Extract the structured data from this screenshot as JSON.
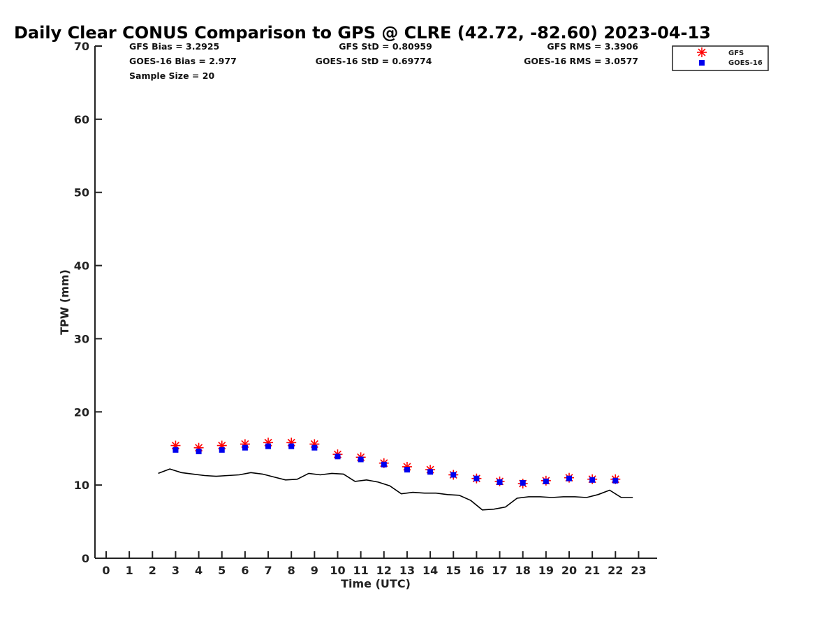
{
  "chart_data": {
    "type": "scatter",
    "title": "Daily Clear CONUS Comparison to GPS @ CLRE (42.72, -82.60) 2023-04-13",
    "xlabel": "Time (UTC)",
    "ylabel": "TPW (mm)",
    "xlim": [
      -0.5,
      23.7
    ],
    "ylim": [
      0,
      70
    ],
    "x_ticks": [
      0,
      1,
      2,
      3,
      4,
      5,
      6,
      7,
      8,
      9,
      10,
      11,
      12,
      13,
      14,
      15,
      16,
      17,
      18,
      19,
      20,
      21,
      22,
      23
    ],
    "y_ticks": [
      0,
      10,
      20,
      30,
      40,
      50,
      60,
      70
    ],
    "stats": {
      "gfs_bias": "GFS Bias = 3.2925",
      "goes_bias": "GOES-16 Bias = 2.977",
      "sample_size": "Sample Size = 20",
      "gfs_std": "GFS StD = 0.80959",
      "goes_std": "GOES-16 StD = 0.69774",
      "gfs_rms": "GFS RMS = 3.3906",
      "goes_rms": "GOES-16 RMS = 3.0577"
    },
    "legend": {
      "position": "top-right",
      "entries": [
        "GFS",
        "GOES-16"
      ]
    },
    "series": [
      {
        "name": "GFS",
        "color": "#ff0000",
        "marker": "asterisk",
        "x": [
          3,
          4,
          5,
          6,
          7,
          8,
          9,
          10,
          11,
          12,
          13,
          14,
          15,
          16,
          17,
          18,
          19,
          20,
          21,
          22
        ],
        "y": [
          15.4,
          15.1,
          15.4,
          15.6,
          15.8,
          15.8,
          15.6,
          14.2,
          13.8,
          13.0,
          12.5,
          12.1,
          11.4,
          10.9,
          10.5,
          10.2,
          10.6,
          11.0,
          10.8,
          10.8
        ]
      },
      {
        "name": "GOES-16",
        "color": "#0000ee",
        "marker": "square",
        "x": [
          3,
          4,
          5,
          6,
          7,
          8,
          9,
          10,
          11,
          12,
          13,
          14,
          15,
          16,
          17,
          18,
          19,
          20,
          21,
          22
        ],
        "y": [
          14.8,
          14.6,
          14.8,
          15.1,
          15.3,
          15.3,
          15.1,
          13.9,
          13.5,
          12.8,
          12.1,
          11.8,
          11.4,
          10.9,
          10.4,
          10.3,
          10.5,
          10.9,
          10.7,
          10.6
        ]
      },
      {
        "name": "GPS",
        "color": "#000000",
        "marker": "line",
        "x": [
          2.25,
          2.75,
          3.25,
          3.75,
          4.25,
          4.75,
          5.25,
          5.75,
          6.25,
          6.75,
          7.25,
          7.75,
          8.25,
          8.75,
          9.25,
          9.75,
          10.25,
          10.75,
          11.25,
          11.75,
          12.25,
          12.75,
          13.25,
          13.75,
          14.25,
          14.75,
          15.25,
          15.75,
          16.25,
          16.75,
          17.25,
          17.75,
          18.25,
          18.75,
          19.25,
          19.75,
          20.25,
          20.75,
          21.25,
          21.75,
          22.25,
          22.75
        ],
        "y": [
          11.6,
          12.2,
          11.7,
          11.5,
          11.3,
          11.2,
          11.3,
          11.4,
          11.7,
          11.5,
          11.1,
          10.7,
          10.8,
          11.6,
          11.4,
          11.6,
          11.5,
          10.5,
          10.7,
          10.4,
          9.9,
          8.8,
          9.0,
          8.9,
          8.9,
          8.7,
          8.6,
          7.9,
          6.6,
          6.7,
          7.0,
          8.2,
          8.4,
          8.4,
          8.3,
          8.4,
          8.4,
          8.3,
          8.7,
          9.3,
          8.3,
          8.3
        ]
      }
    ]
  }
}
